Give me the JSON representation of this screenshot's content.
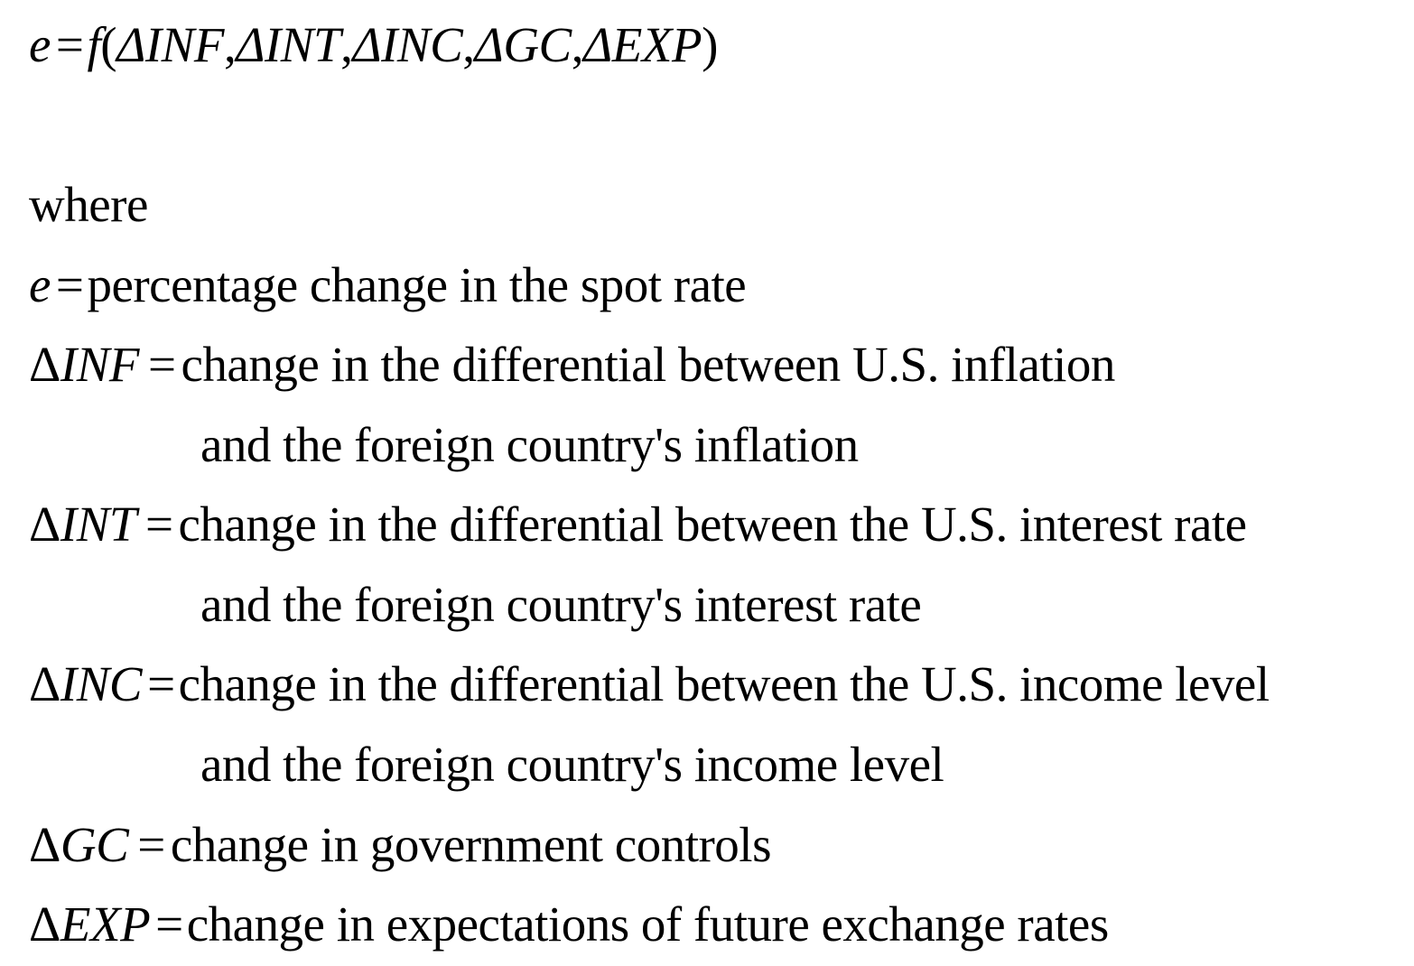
{
  "equation": {
    "lhs": "e",
    "eq": "=",
    "f": "f",
    "open": "(",
    "args": [
      "ΔINF",
      "ΔINT",
      "ΔINC",
      "ΔGC",
      "ΔEXP"
    ],
    "sep": ",",
    "close": ")"
  },
  "where": "where",
  "definitions": [
    {
      "sym": "e",
      "delta": "",
      "eq": "=",
      "text": "percentage change in the spot rate",
      "cont": ""
    },
    {
      "sym": "INF",
      "delta": "Δ",
      "eq": "=",
      "text": "change in the differential between U.S. inflation",
      "cont": "and the foreign country's inflation"
    },
    {
      "sym": "INT",
      "delta": "Δ",
      "eq": "=",
      "text": "change in the differential between the U.S. interest rate",
      "cont": "and the foreign country's interest rate"
    },
    {
      "sym": "INC",
      "delta": "Δ",
      "eq": "=",
      "text": "change in the differential between the U.S. income level",
      "cont": "and the foreign country's income level"
    },
    {
      "sym": "GC",
      "delta": "Δ",
      "eq": "=",
      "text": "change in government controls",
      "cont": ""
    },
    {
      "sym": "EXP",
      "delta": "Δ",
      "eq": "=",
      "text": "change in expectations of future exchange rates",
      "cont": ""
    }
  ]
}
